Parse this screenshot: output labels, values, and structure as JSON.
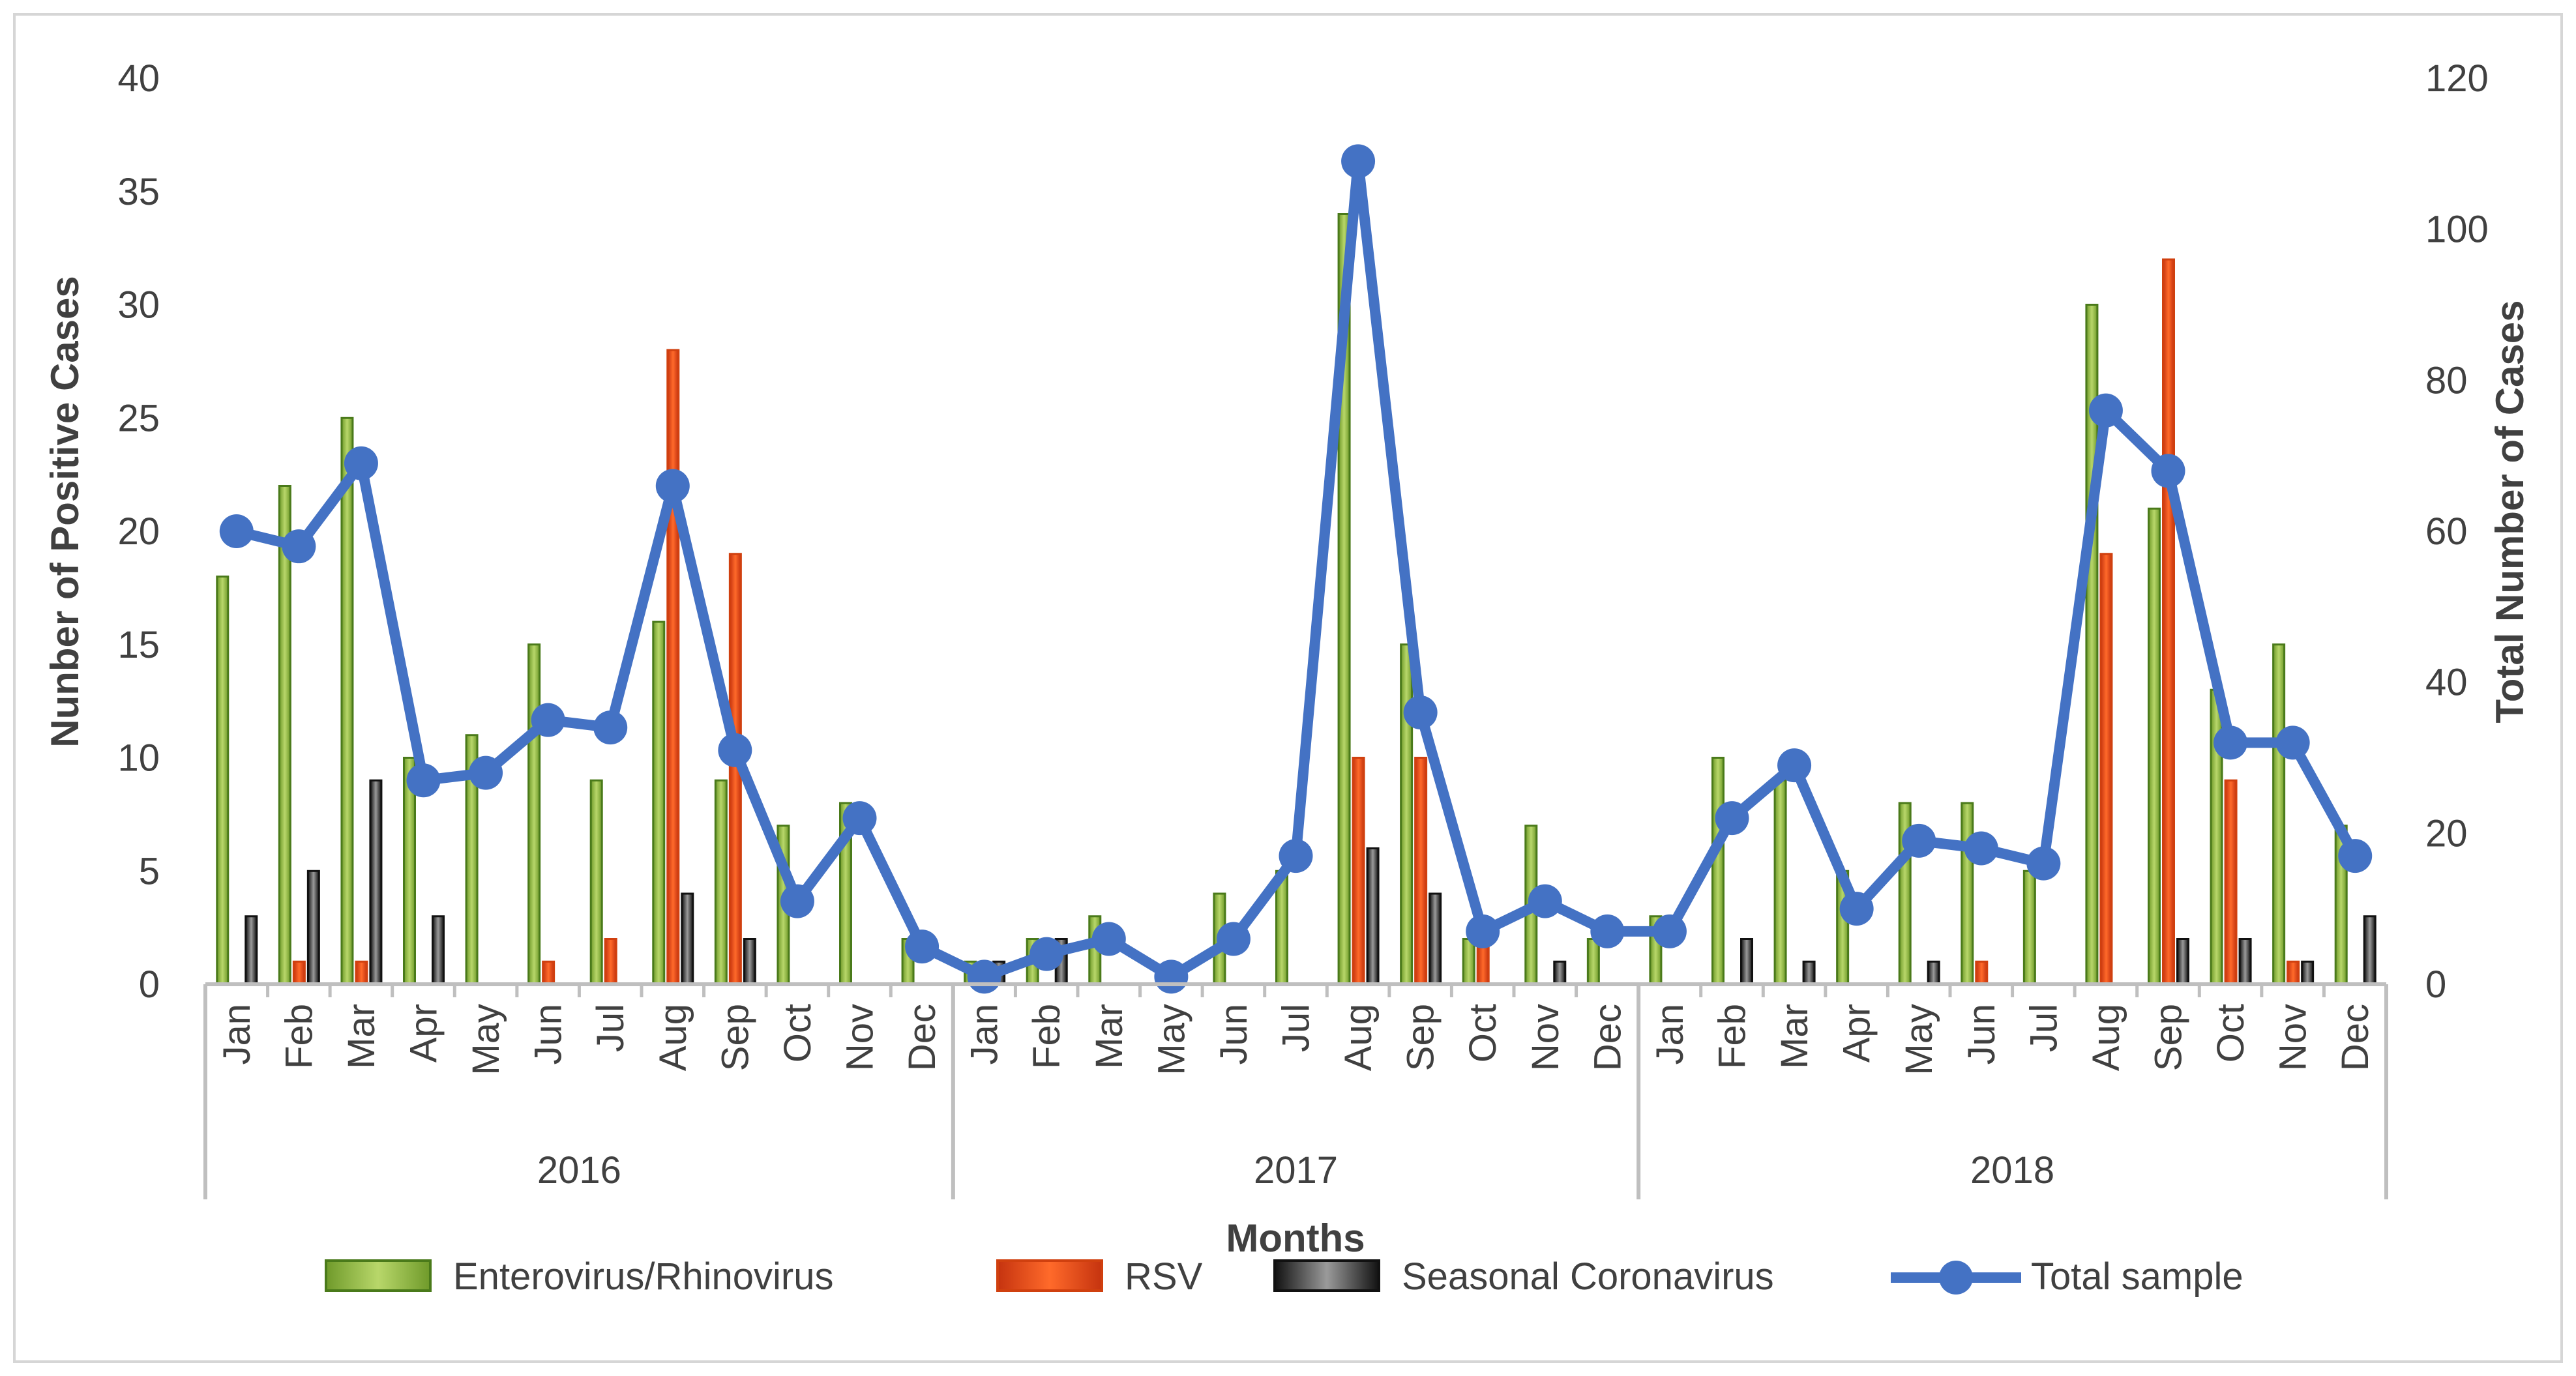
{
  "chart_data": {
    "type": "bar",
    "title": "",
    "xlabel": "Months",
    "ylabel": "Nunber of Positive Cases",
    "y2label": "Total Number of Cases",
    "ylim": [
      0,
      40
    ],
    "y2lim": [
      0,
      120
    ],
    "yticks": [
      "0",
      "5",
      "10",
      "15",
      "20",
      "25",
      "30",
      "35",
      "40"
    ],
    "y2ticks": [
      "0",
      "20",
      "40",
      "60",
      "80",
      "100",
      "120"
    ],
    "years": [
      "2016",
      "2017",
      "2018"
    ],
    "categories": [
      "Jan",
      "Feb",
      "Mar",
      "Apr",
      "May",
      "Jun",
      "Jul",
      "Aug",
      "Sep",
      "Oct",
      "Nov",
      "Dec",
      "Jan",
      "Feb",
      "Mar",
      "May",
      "Jun",
      "Jul",
      "Aug",
      "Sep",
      "Oct",
      "Nov",
      "Dec",
      "Jan",
      "Feb",
      "Mar",
      "Apr",
      "May",
      "Jun",
      "Jul",
      "Aug",
      "Sep",
      "Oct",
      "Nov",
      "Dec"
    ],
    "year_spans": [
      12,
      11,
      12
    ],
    "series": [
      {
        "name": "Enterovirus/Rhinovirus",
        "axis": "left",
        "kind": "bar",
        "color": "#8bbd3c",
        "values": [
          18,
          22,
          25,
          10,
          11,
          15,
          9,
          16,
          9,
          7,
          8,
          2,
          1,
          2,
          3,
          0,
          4,
          5,
          34,
          15,
          2,
          7,
          2,
          3,
          10,
          9,
          5,
          8,
          8,
          5,
          30,
          21,
          13,
          15,
          7
        ]
      },
      {
        "name": "RSV",
        "axis": "left",
        "kind": "bar",
        "color": "#f0471a",
        "values": [
          0,
          1,
          1,
          0,
          0,
          1,
          2,
          28,
          19,
          0,
          0,
          0,
          0,
          0,
          0,
          0,
          0,
          0,
          10,
          10,
          2,
          0,
          0,
          0,
          0,
          0,
          0,
          0,
          1,
          0,
          19,
          32,
          9,
          1,
          0
        ]
      },
      {
        "name": "Seasonal Coronavirus",
        "axis": "left",
        "kind": "bar",
        "color": "#3a3a3a",
        "values": [
          3,
          5,
          9,
          3,
          0,
          0,
          0,
          4,
          2,
          0,
          0,
          0,
          1,
          2,
          0,
          0,
          0,
          0,
          6,
          4,
          0,
          1,
          0,
          0,
          2,
          1,
          0,
          1,
          0,
          0,
          0,
          2,
          2,
          1,
          3
        ]
      },
      {
        "name": "Total sample",
        "axis": "right",
        "kind": "line",
        "color": "#4472c4",
        "values": [
          60,
          58,
          69,
          27,
          28,
          35,
          34,
          66,
          31,
          11,
          22,
          5,
          1,
          4,
          6,
          1,
          6,
          17,
          109,
          36,
          7,
          11,
          7,
          7,
          22,
          29,
          10,
          19,
          18,
          16,
          76,
          68,
          32,
          32,
          17
        ]
      }
    ],
    "legend": [
      "Enterovirus/Rhinovirus",
      "RSV",
      "Seasonal Coronavirus",
      "Total sample"
    ]
  }
}
